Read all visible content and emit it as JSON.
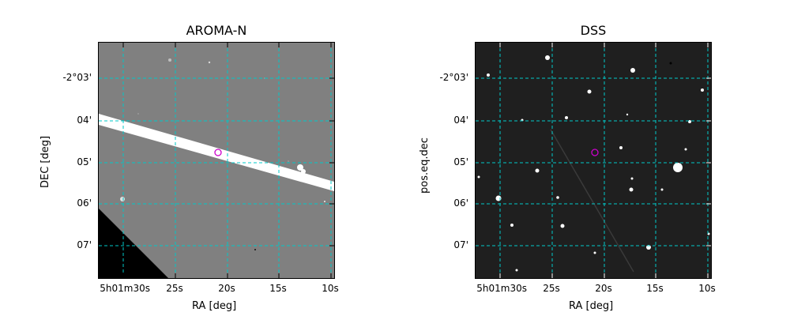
{
  "panels": [
    {
      "title": "AROMA-N",
      "xlabel": "RA [deg]",
      "ylabel": "DEC [deg]",
      "background": "#808080"
    },
    {
      "title": "DSS",
      "xlabel": "RA [deg]",
      "ylabel": "pos.eq.dec",
      "background": "#1f1f1f"
    }
  ],
  "x_ticks": [
    "5h01m30s",
    "25s",
    "20s",
    "15s",
    "10s"
  ],
  "y_ticks": [
    "-2°03'",
    "04'",
    "05'",
    "06'",
    "07'"
  ],
  "colors": {
    "grid": "#00c8c8",
    "marker": "#cc00cc",
    "streak": "#ffffff",
    "mask": "#000000"
  },
  "features": {
    "grid_style": "dashed",
    "target_marker": "circle",
    "left_image": "satellite-streak",
    "left_mask": "bottom-left-triangle"
  }
}
